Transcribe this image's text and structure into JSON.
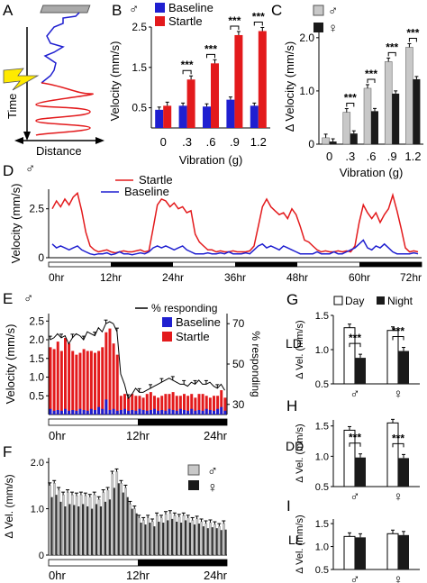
{
  "colors": {
    "red": "#e31a1c",
    "blue": "#1f1fd0",
    "gray": "#c8c8c8",
    "black": "#1a1a1a",
    "darkgray": "#333333"
  },
  "symbols": {
    "male": "♂",
    "female": "♀"
  },
  "panels": {
    "A": {
      "letter": "A",
      "ylabel": "Time",
      "xlabel": "Distance"
    },
    "B": {
      "letter": "B",
      "sex": "♂"
    },
    "C": {
      "letter": "C"
    },
    "D": {
      "letter": "D",
      "sex": "♂"
    },
    "E": {
      "letter": "E",
      "sex": "♂"
    },
    "F": {
      "letter": "F"
    },
    "G": {
      "letter": "G",
      "condition": "LD"
    },
    "H": {
      "letter": "H",
      "condition": "DD"
    },
    "I": {
      "letter": "I",
      "condition": "LL"
    }
  },
  "chart_data": [
    {
      "panel": "B",
      "type": "bar",
      "categories": [
        "0",
        ".3",
        ".6",
        ".9",
        "1.2"
      ],
      "series": [
        {
          "name": "Baseline",
          "values": [
            0.45,
            0.55,
            0.53,
            0.7,
            0.55
          ]
        },
        {
          "name": "Startle",
          "values": [
            0.55,
            1.2,
            1.6,
            2.3,
            2.4
          ]
        }
      ],
      "xlabel": "Vibration (g)",
      "ylabel": "Velocity (mm/s)",
      "ylim": [
        0,
        2.5
      ],
      "yticks": [
        "0.5",
        "1.5",
        "2.5"
      ],
      "significance": [
        "***",
        "***",
        "***",
        "***"
      ],
      "legend": "top-left"
    },
    {
      "panel": "C",
      "type": "bar",
      "categories": [
        "0",
        ".3",
        ".6",
        ".9",
        "1.2"
      ],
      "series": [
        {
          "name": "♂",
          "values": [
            0.12,
            0.6,
            1.05,
            1.55,
            1.82
          ]
        },
        {
          "name": "♀",
          "values": [
            0.05,
            0.2,
            0.62,
            0.95,
            1.22
          ]
        }
      ],
      "xlabel": "Vibration (g)",
      "ylabel": "Δ Velocity (mm/s)",
      "ylim": [
        0,
        2.2
      ],
      "yticks": [
        "0",
        "1.0",
        "2.0"
      ],
      "significance": [
        "***",
        "***",
        "***",
        "***"
      ],
      "legend": "top-left"
    },
    {
      "panel": "D",
      "type": "line",
      "x_ticks": [
        "0hr",
        "12hr",
        "24hr",
        "36hr",
        "48hr",
        "60hr",
        "72hr"
      ],
      "series": [
        {
          "name": "Startle",
          "values": [
            2.5,
            2.9,
            2.6,
            3.0,
            2.7,
            3.1,
            3.3,
            2.4,
            1.3,
            0.6,
            0.4,
            0.3,
            0.35,
            0.4,
            0.3,
            0.25,
            0.3,
            0.35,
            0.3,
            0.3,
            0.35,
            0.4,
            0.3,
            0.35,
            1.5,
            2.7,
            3.0,
            2.9,
            2.6,
            2.8,
            2.5,
            2.6,
            2.3,
            2.4,
            1.2,
            0.8,
            0.6,
            0.4,
            0.4,
            0.3,
            0.35,
            0.3,
            0.3,
            0.35,
            0.3,
            0.3,
            0.3,
            0.35,
            0.6,
            1.6,
            2.6,
            3.0,
            2.6,
            2.4,
            2.2,
            2.3,
            2.0,
            2.5,
            2.2,
            1.6,
            0.9,
            0.8,
            0.6,
            0.4,
            0.3,
            0.35,
            0.3,
            0.3,
            0.35,
            0.3,
            0.35,
            0.3,
            0.6,
            1.8,
            2.7,
            2.3,
            2.0,
            2.3,
            1.8,
            2.2,
            2.5,
            3.2,
            2.4,
            1.5,
            0.5,
            0.3,
            0.35,
            0.3
          ]
        },
        {
          "name": "Baseline",
          "values": [
            0.7,
            0.5,
            0.6,
            0.5,
            0.4,
            0.5,
            0.6,
            0.4,
            0.3,
            0.2,
            0.15,
            0.2,
            0.2,
            0.25,
            0.15,
            0.2,
            0.3,
            0.2,
            0.2,
            0.15,
            0.2,
            0.25,
            0.2,
            0.3,
            0.5,
            0.6,
            0.5,
            0.6,
            0.5,
            0.4,
            0.5,
            0.6,
            0.4,
            0.3,
            0.2,
            0.2,
            0.2,
            0.25,
            0.2,
            0.2,
            0.25,
            0.2,
            0.3,
            0.2,
            0.2,
            0.2,
            0.25,
            0.2,
            0.4,
            0.6,
            0.7,
            0.5,
            0.6,
            0.5,
            0.4,
            0.6,
            0.5,
            0.4,
            0.3,
            0.2,
            0.2,
            0.2,
            0.2,
            0.3,
            0.2,
            0.2,
            0.2,
            0.3,
            0.2,
            0.2,
            0.3,
            0.4,
            0.5,
            0.7,
            0.9,
            0.5,
            0.4,
            0.6,
            0.5,
            0.7,
            0.5,
            0.3,
            0.2,
            0.2,
            0.2,
            0.2,
            0.25,
            0.2
          ]
        }
      ],
      "ylabel": "Velocity (mm/s)",
      "ylim": [
        0,
        3.5
      ],
      "yticks": [
        "0",
        "2.5"
      ],
      "legend": "top-left"
    },
    {
      "panel": "E",
      "type": "bar",
      "x_ticks": [
        "0hr",
        "12hr",
        "24hr"
      ],
      "series": [
        {
          "name": "Startle",
          "values": [
            1.8,
            1.75,
            1.95,
            1.7,
            2.05,
            1.9,
            1.7,
            1.6,
            1.65,
            1.75,
            1.7,
            1.7,
            1.65,
            1.7,
            1.8,
            2.2,
            2.3,
            1.9,
            1.6,
            0.5,
            0.55,
            0.45,
            0.55,
            0.5,
            0.5,
            0.45,
            0.55,
            0.6,
            0.5,
            0.45,
            0.5,
            0.55,
            0.55,
            0.6,
            0.5,
            0.5,
            0.55,
            0.5,
            0.55,
            0.45,
            0.55,
            0.55,
            0.5,
            0.45,
            0.5,
            0.5,
            0.65,
            0.45
          ]
        },
        {
          "name": "Baseline",
          "values": [
            0.15,
            0.1,
            0.12,
            0.1,
            0.15,
            0.1,
            0.12,
            0.1,
            0.15,
            0.12,
            0.1,
            0.15,
            0.12,
            0.2,
            0.15,
            0.4,
            0.12,
            0.15,
            0.1,
            0.12,
            0.15,
            0.1,
            0.12,
            0.1,
            0.15,
            0.12,
            0.1,
            0.12,
            0.15,
            0.1,
            0.12,
            0.1,
            0.15,
            0.12,
            0.1,
            0.15,
            0.12,
            0.1,
            0.15,
            0.1,
            0.12,
            0.1,
            0.15,
            0.12,
            0.1,
            0.15,
            0.2,
            0.1
          ]
        },
        {
          "name": "% responding",
          "values": [
            62,
            63,
            65,
            63,
            64,
            60,
            63,
            65,
            64,
            62,
            66,
            65,
            64,
            68,
            66,
            70,
            71,
            70,
            66,
            45,
            40,
            33,
            35,
            38,
            36,
            36,
            37,
            38,
            39,
            40,
            41,
            42,
            43,
            42,
            41,
            40,
            40,
            39,
            41,
            40,
            42,
            40,
            40,
            41,
            39,
            38,
            40,
            37
          ]
        }
      ],
      "ylabel": "Velocity (mm/s)",
      "y2label": "% responding",
      "ylim": [
        0,
        2.7
      ],
      "yticks": [
        "0.5",
        "1.0",
        "1.5",
        "2.0",
        "2.5"
      ],
      "y2ticks": [
        "30",
        "50",
        "70"
      ],
      "legend": "top-right"
    },
    {
      "panel": "F",
      "type": "bar",
      "x_ticks": [
        "0hr",
        "12hr",
        "24hr"
      ],
      "series": [
        {
          "name": "♂",
          "values": [
            1.5,
            1.55,
            1.4,
            1.3,
            1.35,
            1.3,
            1.28,
            1.3,
            1.28,
            1.25,
            1.3,
            1.2,
            1.35,
            1.4,
            1.75,
            1.8,
            1.55,
            1.45,
            1.1,
            1.0,
            0.8,
            0.75,
            0.8,
            0.72,
            0.85,
            0.8,
            0.88,
            0.9,
            0.85,
            0.82,
            0.85,
            0.8,
            0.75,
            0.78,
            0.72,
            0.68,
            0.7,
            0.66,
            0.62,
            0.68
          ]
        },
        {
          "name": "♀",
          "values": [
            1.25,
            1.3,
            1.15,
            1.05,
            1.1,
            1.08,
            1.05,
            1.1,
            1.05,
            1.0,
            1.1,
            1.05,
            1.15,
            1.2,
            1.45,
            1.55,
            1.35,
            1.25,
            1.0,
            0.9,
            0.7,
            0.66,
            0.7,
            0.62,
            0.72,
            0.7,
            0.75,
            0.78,
            0.72,
            0.7,
            0.75,
            0.7,
            0.66,
            0.68,
            0.62,
            0.58,
            0.6,
            0.58,
            0.54,
            0.55
          ]
        }
      ],
      "ylabel": "Δ Vel. (mm/s)",
      "ylim": [
        0,
        2.1
      ],
      "yticks": [
        "0",
        "1.0",
        "2.0"
      ],
      "legend": "top-right"
    },
    {
      "panel": "G",
      "type": "bar",
      "categories": [
        "♂",
        "♀"
      ],
      "series": [
        {
          "name": "Day",
          "values": [
            1.32,
            1.28
          ]
        },
        {
          "name": "Night",
          "values": [
            0.88,
            0.98
          ]
        }
      ],
      "ylabel": "Δ Vel. (mm/s)",
      "ylim": [
        0.5,
        1.5
      ],
      "yticks": [
        "0.5",
        "1.0",
        "1.5"
      ],
      "significance": [
        "***",
        "***"
      ],
      "legend": "top"
    },
    {
      "panel": "H",
      "type": "bar",
      "categories": [
        "♂",
        "♀"
      ],
      "series": [
        {
          "name": "Day",
          "values": [
            1.43,
            1.55
          ]
        },
        {
          "name": "Night",
          "values": [
            0.98,
            0.97
          ]
        }
      ],
      "ylabel": "Δ Vel. (mm/s)",
      "ylim": [
        0.5,
        1.6
      ],
      "yticks": [
        "0.5",
        "1.0",
        "1.5"
      ],
      "significance": [
        "***",
        "***"
      ]
    },
    {
      "panel": "I",
      "type": "bar",
      "categories": [
        "♂",
        "♀"
      ],
      "series": [
        {
          "name": "Day",
          "values": [
            1.22,
            1.28
          ]
        },
        {
          "name": "Night",
          "values": [
            1.2,
            1.25
          ]
        }
      ],
      "ylabel": "Δ Vel. (mm/s)",
      "ylim": [
        0.5,
        1.6
      ],
      "yticks": [
        "0.5",
        "1.0",
        "1.5"
      ]
    }
  ]
}
